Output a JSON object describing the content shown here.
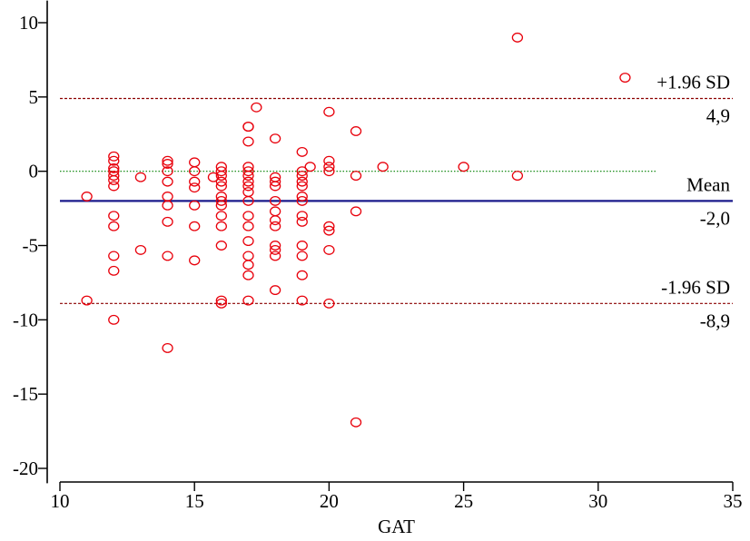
{
  "chart_data": {
    "type": "scatter",
    "title": "",
    "xlabel": "GAT",
    "ylabel": "",
    "xlim": [
      10,
      35
    ],
    "ylim": [
      -21,
      11
    ],
    "x_ticks": [
      10,
      15,
      20,
      25,
      30,
      35
    ],
    "y_ticks": [
      10,
      5,
      0,
      -5,
      -10,
      -15,
      -20
    ],
    "x_tick_labels": [
      "10",
      "15",
      "20",
      "25",
      "30",
      "35"
    ],
    "y_tick_labels": [
      "10",
      "5",
      "0",
      "-5",
      "-10",
      "-15",
      "-20"
    ],
    "grid": false,
    "point_color": "#e8000b",
    "zero_line": {
      "y": 0,
      "color": "#008000",
      "x_range": [
        10,
        32.2
      ]
    },
    "reference_lines": [
      {
        "key": "upper",
        "y": 4.9,
        "label": "+1.96 SD",
        "value_label": "4,9",
        "color": "#8b0000",
        "style": "dashed"
      },
      {
        "key": "mean",
        "y": -2.0,
        "label": "Mean",
        "value_label": "-2,0",
        "color": "#1a1a8c",
        "style": "solid"
      },
      {
        "key": "lower",
        "y": -8.9,
        "label": "-1.96 SD",
        "value_label": "-8,9",
        "color": "#8b0000",
        "style": "dashed"
      }
    ],
    "points": [
      [
        11,
        -1.7
      ],
      [
        11,
        -8.7
      ],
      [
        12,
        1.0
      ],
      [
        12,
        0.7
      ],
      [
        12,
        0.2
      ],
      [
        12,
        0.0
      ],
      [
        12,
        -0.3
      ],
      [
        12,
        -0.6
      ],
      [
        12,
        -1.0
      ],
      [
        12,
        -3.0
      ],
      [
        12,
        -3.7
      ],
      [
        12,
        -5.7
      ],
      [
        12,
        -6.7
      ],
      [
        12,
        -10.0
      ],
      [
        13,
        -0.4
      ],
      [
        13,
        -5.3
      ],
      [
        14,
        0.7
      ],
      [
        14,
        0.5
      ],
      [
        14,
        0.0
      ],
      [
        14,
        -0.7
      ],
      [
        14,
        -1.7
      ],
      [
        14,
        -2.3
      ],
      [
        14,
        -3.4
      ],
      [
        14,
        -5.7
      ],
      [
        14,
        -11.9
      ],
      [
        15,
        0.6
      ],
      [
        15,
        0.0
      ],
      [
        15,
        -0.7
      ],
      [
        15,
        -1.1
      ],
      [
        15,
        -2.3
      ],
      [
        15,
        -3.7
      ],
      [
        15,
        -6.0
      ],
      [
        15.7,
        -0.4
      ],
      [
        16,
        0.3
      ],
      [
        16,
        0.0
      ],
      [
        16,
        -0.3
      ],
      [
        16,
        -0.7
      ],
      [
        16,
        -1.0
      ],
      [
        16,
        -1.7
      ],
      [
        16,
        -2.0
      ],
      [
        16,
        -2.3
      ],
      [
        16,
        -3.0
      ],
      [
        16,
        -3.7
      ],
      [
        16,
        -5.0
      ],
      [
        16,
        -8.7
      ],
      [
        16,
        -8.9
      ],
      [
        17,
        3.0
      ],
      [
        17,
        3.0
      ],
      [
        17,
        2.0
      ],
      [
        17,
        0.3
      ],
      [
        17,
        0.0
      ],
      [
        17,
        -0.3
      ],
      [
        17,
        -0.7
      ],
      [
        17,
        -1.0
      ],
      [
        17,
        -1.4
      ],
      [
        17,
        -2.0
      ],
      [
        17,
        -3.0
      ],
      [
        17,
        -3.7
      ],
      [
        17,
        -4.7
      ],
      [
        17,
        -5.7
      ],
      [
        17,
        -6.3
      ],
      [
        17,
        -7.0
      ],
      [
        17,
        -8.7
      ],
      [
        17.3,
        4.3
      ],
      [
        18,
        2.2
      ],
      [
        18,
        -0.4
      ],
      [
        18,
        -0.7
      ],
      [
        18,
        -1.0
      ],
      [
        18,
        -2.0
      ],
      [
        18,
        -2.7
      ],
      [
        18,
        -3.3
      ],
      [
        18,
        -3.7
      ],
      [
        18,
        -5.0
      ],
      [
        18,
        -5.3
      ],
      [
        18,
        -5.7
      ],
      [
        18,
        -8.0
      ],
      [
        19,
        1.3
      ],
      [
        19,
        0.0
      ],
      [
        19,
        -0.3
      ],
      [
        19,
        -0.7
      ],
      [
        19,
        -1.0
      ],
      [
        19,
        -1.7
      ],
      [
        19,
        -2.0
      ],
      [
        19,
        -3.0
      ],
      [
        19,
        -3.4
      ],
      [
        19,
        -5.0
      ],
      [
        19,
        -5.7
      ],
      [
        19,
        -7.0
      ],
      [
        19,
        -8.7
      ],
      [
        19.3,
        0.3
      ],
      [
        20,
        4.0
      ],
      [
        20,
        0.7
      ],
      [
        20,
        0.3
      ],
      [
        20,
        0.0
      ],
      [
        20,
        -3.7
      ],
      [
        20,
        -4.0
      ],
      [
        20,
        -5.3
      ],
      [
        20,
        -8.9
      ],
      [
        21,
        2.7
      ],
      [
        21,
        -0.3
      ],
      [
        21,
        -2.7
      ],
      [
        21,
        -16.9
      ],
      [
        22,
        0.3
      ],
      [
        25,
        0.3
      ],
      [
        27,
        9.0
      ],
      [
        27,
        -0.3
      ],
      [
        31,
        6.3
      ]
    ]
  }
}
